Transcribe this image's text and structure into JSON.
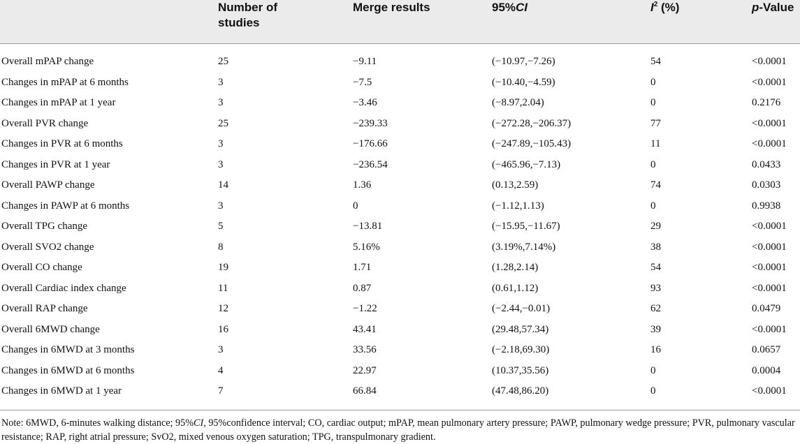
{
  "table": {
    "headers": {
      "col0": "",
      "col1_line1": "Number of",
      "col1_line2": "studies",
      "col2": "Merge results",
      "col3_prefix": "95%",
      "col3_italic": "CI",
      "col4_italic": "I",
      "col4_sup": "2",
      "col4_suffix": " (%)",
      "col5_italic": "p",
      "col5_suffix": "-Value"
    },
    "rows": [
      {
        "label": "Overall mPAP change",
        "n": "25",
        "merge": "−9.11",
        "ci": "(−10.97,−7.26)",
        "i2": "54",
        "p": "<0.0001"
      },
      {
        "label": "Changes in mPAP at 6 months",
        "n": "3",
        "merge": "−7.5",
        "ci": "(−10.40,−4.59)",
        "i2": "0",
        "p": "<0.0001"
      },
      {
        "label": "Changes in mPAP at 1 year",
        "n": "3",
        "merge": "−3.46",
        "ci": "(−8.97,2.04)",
        "i2": "0",
        "p": "0.2176"
      },
      {
        "label": "Overall PVR change",
        "n": "25",
        "merge": "−239.33",
        "ci": "(−272.28,−206.37)",
        "i2": "77",
        "p": "<0.0001"
      },
      {
        "label": "Changes in PVR at 6 months",
        "n": "3",
        "merge": "−176.66",
        "ci": "(−247.89,−105.43)",
        "i2": "11",
        "p": "<0.0001"
      },
      {
        "label": "Changes in PVR at 1 year",
        "n": "3",
        "merge": "−236.54",
        "ci": "(−465.96,−7.13)",
        "i2": "0",
        "p": "0.0433"
      },
      {
        "label": "Overall PAWP change",
        "n": "14",
        "merge": "1.36",
        "ci": "(0.13,2.59)",
        "i2": "74",
        "p": "0.0303"
      },
      {
        "label": "Changes in PAWP at 6 months",
        "n": "3",
        "merge": "0",
        "ci": "(−1.12,1.13)",
        "i2": "0",
        "p": "0.9938"
      },
      {
        "label": "Overall TPG change",
        "n": "5",
        "merge": "−13.81",
        "ci": "(−15.95,−11.67)",
        "i2": "29",
        "p": "<0.0001"
      },
      {
        "label": "Overall SVO2 change",
        "n": "8",
        "merge": "5.16%",
        "ci": "(3.19%,7.14%)",
        "i2": "38",
        "p": "<0.0001"
      },
      {
        "label": "Overall CO change",
        "n": "19",
        "merge": "1.71",
        "ci": "(1.28,2.14)",
        "i2": "54",
        "p": "<0.0001"
      },
      {
        "label": "Overall Cardiac index change",
        "n": "11",
        "merge": "0.87",
        "ci": "(0.61,1.12)",
        "i2": "93",
        "p": "<0.0001"
      },
      {
        "label": "Overall RAP change",
        "n": "12",
        "merge": "−1.22",
        "ci": "(−2.44,−0.01)",
        "i2": "62",
        "p": "0.0479"
      },
      {
        "label": "Overall 6MWD change",
        "n": "16",
        "merge": "43.41",
        "ci": "(29.48,57.34)",
        "i2": "39",
        "p": "<0.0001"
      },
      {
        "label": "Changes in 6MWD at 3 months",
        "n": "3",
        "merge": "33.56",
        "ci": "(−2.18,69.30)",
        "i2": "16",
        "p": "0.0657"
      },
      {
        "label": "Changes in 6MWD at 6 months",
        "n": "4",
        "merge": "22.97",
        "ci": "(10.37,35.56)",
        "i2": "0",
        "p": "0.0004"
      },
      {
        "label": "Changes in 6MWD at 1 year",
        "n": "7",
        "merge": "66.84",
        "ci": "(47.48,86.20)",
        "i2": "0",
        "p": "<0.0001"
      }
    ]
  },
  "note": {
    "part1": "Note: 6MWD, 6-minutes walking distance; 95%",
    "part1_italic": "CI",
    "part2": ", 95%confidence interval; CO, cardiac output; mPAP, mean pulmonary artery pressure; PAWP, pulmonary wedge pressure; PVR, pulmonary vascular resistance; RAP, right atrial pressure; SvO2, mixed venous oxygen saturation; TPG, transpulmonary gradient."
  }
}
